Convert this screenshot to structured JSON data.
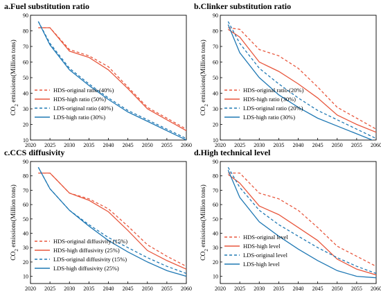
{
  "colors": {
    "HDS": "#e8573d",
    "LDS": "#1f78b4"
  },
  "chart_data": [
    {
      "type": "line",
      "title": "a.Fuel substitution ratio",
      "xlabel": "",
      "ylabel": "CO2 emissions(Million tons)",
      "xlim": [
        2020,
        2060
      ],
      "ylim": [
        10,
        90
      ],
      "xticks": [
        2020,
        2025,
        2030,
        2035,
        2040,
        2045,
        2050,
        2055,
        2060
      ],
      "yticks": [
        10,
        20,
        30,
        40,
        50,
        60,
        70,
        80,
        90
      ],
      "legend_position": "lower-left",
      "series": [
        {
          "name": "HDS-original ratio (40%)",
          "color": "#e8573d",
          "dash": "dashed",
          "x": [
            2022,
            2025,
            2030,
            2035,
            2040,
            2045,
            2050,
            2055,
            2060
          ],
          "y": [
            82,
            82,
            68,
            64,
            57,
            44,
            31,
            24,
            17
          ]
        },
        {
          "name": "HDS-high ratio (50%)",
          "color": "#e8573d",
          "dash": "solid",
          "x": [
            2022,
            2025,
            2030,
            2035,
            2040,
            2045,
            2050,
            2055,
            2060
          ],
          "y": [
            82,
            82,
            67,
            63,
            55,
            43,
            30,
            23,
            16
          ]
        },
        {
          "name": "LDS-original ratio (40%)",
          "color": "#1f78b4",
          "dash": "dashed",
          "x": [
            2022,
            2025,
            2030,
            2035,
            2040,
            2045,
            2050,
            2055,
            2060
          ],
          "y": [
            86,
            72,
            56,
            46,
            37,
            29,
            23,
            17,
            11
          ]
        },
        {
          "name": "LDS-high ratio (30%)",
          "color": "#1f78b4",
          "dash": "solid",
          "x": [
            2022,
            2025,
            2030,
            2035,
            2040,
            2045,
            2050,
            2055,
            2060
          ],
          "y": [
            86,
            71,
            55,
            45,
            36,
            28,
            22,
            16,
            10
          ]
        }
      ]
    },
    {
      "type": "line",
      "title": "b.Clinker substitution ratio",
      "xlabel": "",
      "ylabel": "CO2 emissions(Million tons)",
      "xlim": [
        2020,
        2060
      ],
      "ylim": [
        10,
        90
      ],
      "xticks": [
        2020,
        2025,
        2030,
        2035,
        2040,
        2045,
        2050,
        2055,
        2060
      ],
      "yticks": [
        10,
        20,
        30,
        40,
        50,
        60,
        70,
        80,
        90
      ],
      "legend_position": "lower-left",
      "series": [
        {
          "name": "HDS-original ratio (20%)",
          "color": "#e8573d",
          "dash": "dashed",
          "x": [
            2022,
            2025,
            2030,
            2035,
            2040,
            2045,
            2050,
            2055,
            2060
          ],
          "y": [
            82,
            81,
            68,
            64,
            56,
            44,
            31,
            24,
            17
          ]
        },
        {
          "name": "HDS-high ratio (30%)",
          "color": "#e8573d",
          "dash": "solid",
          "x": [
            2022,
            2025,
            2030,
            2035,
            2040,
            2045,
            2050,
            2055,
            2060
          ],
          "y": [
            81,
            76,
            60,
            54,
            46,
            37,
            26,
            20,
            15
          ]
        },
        {
          "name": "LDS-original ratio (20%)",
          "color": "#1f78b4",
          "dash": "dashed",
          "x": [
            2022,
            2025,
            2030,
            2035,
            2040,
            2045,
            2050,
            2055,
            2060
          ],
          "y": [
            86,
            72,
            56,
            46,
            37,
            29,
            23,
            17,
            11
          ]
        },
        {
          "name": "LDS-high ratio (30%)",
          "color": "#1f78b4",
          "dash": "solid",
          "x": [
            2022,
            2025,
            2030,
            2035,
            2040,
            2045,
            2050,
            2055,
            2060
          ],
          "y": [
            84,
            66,
            50,
            39,
            31,
            24,
            19,
            14,
            9
          ]
        }
      ]
    },
    {
      "type": "line",
      "title": "c.CCS diffusivity",
      "xlabel": "",
      "ylabel": "CO2 emissions(Million tons)",
      "xlim": [
        2020,
        2060
      ],
      "ylim": [
        5,
        90
      ],
      "xticks": [
        2020,
        2025,
        2030,
        2035,
        2040,
        2045,
        2050,
        2055,
        2060
      ],
      "yticks": [
        10,
        20,
        30,
        40,
        50,
        60,
        70,
        80,
        90
      ],
      "legend_position": "lower-left",
      "series": [
        {
          "name": "HDS-original diffusivity (15%)",
          "color": "#e8573d",
          "dash": "dashed",
          "x": [
            2022,
            2025,
            2030,
            2035,
            2040,
            2045,
            2050,
            2055,
            2060
          ],
          "y": [
            82,
            82,
            68,
            64,
            57,
            45,
            32,
            24,
            17
          ]
        },
        {
          "name": "HDS-high diffusivity (25%)",
          "color": "#e8573d",
          "dash": "solid",
          "x": [
            2022,
            2025,
            2030,
            2035,
            2040,
            2045,
            2050,
            2055,
            2060
          ],
          "y": [
            82,
            82,
            68,
            63,
            55,
            42,
            28,
            21,
            15
          ]
        },
        {
          "name": "LDS-original diffusivity (15%)",
          "color": "#1f78b4",
          "dash": "dashed",
          "x": [
            2022,
            2025,
            2030,
            2035,
            2040,
            2045,
            2050,
            2055,
            2060
          ],
          "y": [
            86,
            71,
            56,
            46,
            37,
            30,
            23,
            17,
            12
          ]
        },
        {
          "name": "LDS-high diffusivity (25%)",
          "color": "#1f78b4",
          "dash": "solid",
          "x": [
            2022,
            2025,
            2030,
            2035,
            2040,
            2045,
            2050,
            2055,
            2060
          ],
          "y": [
            86,
            71,
            56,
            45,
            35,
            27,
            20,
            14,
            10
          ]
        }
      ]
    },
    {
      "type": "line",
      "title": "d.High technical level",
      "xlabel": "",
      "ylabel": "CO2 emissions(Million tons)",
      "xlim": [
        2020,
        2060
      ],
      "ylim": [
        5,
        90
      ],
      "xticks": [
        2020,
        2025,
        2030,
        2035,
        2040,
        2045,
        2050,
        2055,
        2060
      ],
      "yticks": [
        10,
        20,
        30,
        40,
        50,
        60,
        70,
        80,
        90
      ],
      "legend_position": "lower-left",
      "series": [
        {
          "name": "HDS-original level",
          "color": "#e8573d",
          "dash": "dashed",
          "x": [
            2022,
            2025,
            2030,
            2035,
            2040,
            2045,
            2050,
            2055,
            2060
          ],
          "y": [
            82,
            82,
            68,
            64,
            56,
            44,
            31,
            24,
            17
          ]
        },
        {
          "name": "HDS-high level",
          "color": "#e8573d",
          "dash": "solid",
          "x": [
            2022,
            2025,
            2030,
            2035,
            2040,
            2045,
            2050,
            2055,
            2060
          ],
          "y": [
            81,
            75,
            59,
            53,
            44,
            35,
            22,
            15,
            11
          ]
        },
        {
          "name": "LDS-original level",
          "color": "#1f78b4",
          "dash": "dashed",
          "x": [
            2022,
            2025,
            2030,
            2035,
            2040,
            2045,
            2050,
            2055,
            2060
          ],
          "y": [
            86,
            72,
            56,
            46,
            38,
            30,
            23,
            17,
            12
          ]
        },
        {
          "name": "LDS-high level",
          "color": "#1f78b4",
          "dash": "solid",
          "x": [
            2022,
            2025,
            2030,
            2035,
            2040,
            2045,
            2050,
            2055,
            2060
          ],
          "y": [
            84,
            65,
            48,
            38,
            29,
            21,
            14,
            10,
            9
          ]
        }
      ]
    }
  ]
}
